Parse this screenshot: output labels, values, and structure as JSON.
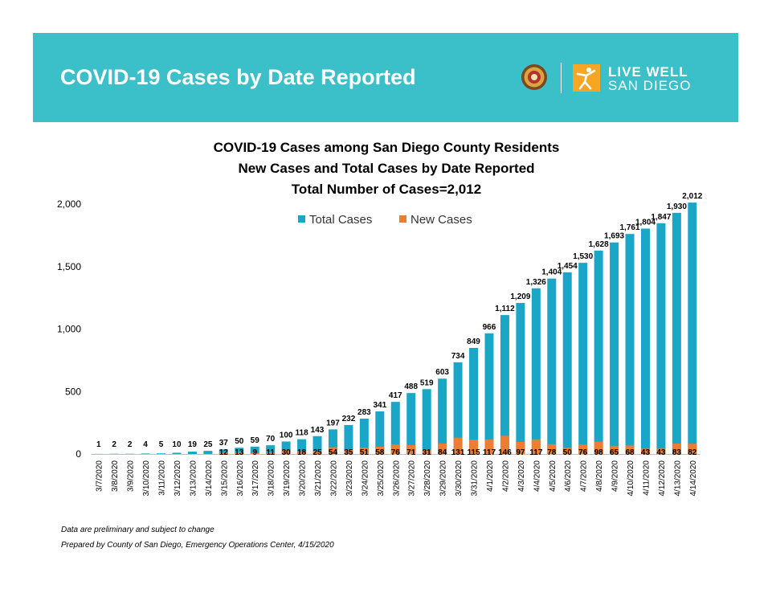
{
  "header": {
    "title": "COVID-19 Cases by Date Reported",
    "logo_line1": "LIVE WELL",
    "logo_line2": "SAN DIEGO",
    "banner_color": "#3bbfc9"
  },
  "footnotes": {
    "line1": "Data are preliminary and subject to change",
    "line2": "Prepared by County of San Diego, Emergency Operations Center, 4/15/2020"
  },
  "chart_data": {
    "type": "bar",
    "title_lines": [
      "COVID-19 Cases among San Diego County Residents",
      "New Cases and Total Cases by Date Reported",
      "Total Number of Cases=2,012"
    ],
    "categories": [
      "3/7/2020",
      "3/8/2020",
      "3/9/2020",
      "3/10/2020",
      "3/11/2020",
      "3/12/2020",
      "3/13/2020",
      "3/14/2020",
      "3/15/2020",
      "3/16/2020",
      "3/17/2020",
      "3/18/2020",
      "3/19/2020",
      "3/20/2020",
      "3/21/2020",
      "3/22/2020",
      "3/23/2020",
      "3/24/2020",
      "3/25/2020",
      "3/26/2020",
      "3/27/2020",
      "3/28/2020",
      "3/29/2020",
      "3/30/2020",
      "3/31/2020",
      "4/1/2020",
      "4/2/2020",
      "4/3/2020",
      "4/4/2020",
      "4/5/2020",
      "4/6/2020",
      "4/7/2020",
      "4/8/2020",
      "4/9/2020",
      "4/10/2020",
      "4/11/2020",
      "4/12/2020",
      "4/13/2020",
      "4/14/2020"
    ],
    "series": [
      {
        "name": "Total Cases",
        "color": "#1aa7c7",
        "values": [
          1,
          2,
          2,
          4,
          5,
          10,
          19,
          25,
          37,
          50,
          59,
          70,
          100,
          118,
          143,
          197,
          232,
          283,
          341,
          417,
          488,
          519,
          603,
          734,
          849,
          966,
          1112,
          1209,
          1326,
          1404,
          1454,
          1530,
          1628,
          1693,
          1761,
          1804,
          1847,
          1930,
          2012
        ],
        "labels": [
          "1",
          "2",
          "2",
          "4",
          "5",
          "10",
          "19",
          "25",
          "37",
          "50",
          "59",
          "70",
          "100",
          "118",
          "143",
          "197",
          "232",
          "283",
          "341",
          "417",
          "488",
          "519",
          "603",
          "734",
          "849",
          "966",
          "1,112",
          "1,209",
          "1,326",
          "1,404",
          "1,454",
          "1,530",
          "1,628",
          "1,693",
          "1,761",
          "1,804",
          "1,847",
          "1,930",
          "2,012"
        ]
      },
      {
        "name": "New Cases",
        "color": "#ed7d31",
        "values": [
          null,
          null,
          null,
          null,
          null,
          null,
          null,
          null,
          12,
          13,
          9,
          11,
          30,
          18,
          25,
          54,
          35,
          51,
          58,
          76,
          71,
          31,
          84,
          131,
          115,
          117,
          146,
          97,
          117,
          78,
          50,
          76,
          98,
          65,
          68,
          43,
          43,
          83,
          82
        ],
        "labels": [
          "",
          "",
          "",
          "",
          "",
          "",
          "",
          "",
          "12",
          "13",
          "9",
          "11",
          "30",
          "18",
          "25",
          "54",
          "35",
          "51",
          "58",
          "76",
          "71",
          "31",
          "84",
          "131",
          "115",
          "117",
          "146",
          "97",
          "117",
          "78",
          "50",
          "76",
          "98",
          "65",
          "68",
          "43",
          "43",
          "83",
          "82"
        ]
      }
    ],
    "yticks": [
      "0",
      "500",
      "1,000",
      "1,500",
      "2,000"
    ],
    "ytick_values": [
      0,
      500,
      1000,
      1500,
      2000
    ],
    "ylim": [
      0,
      2000
    ],
    "legend": "top-center",
    "grid": false
  }
}
